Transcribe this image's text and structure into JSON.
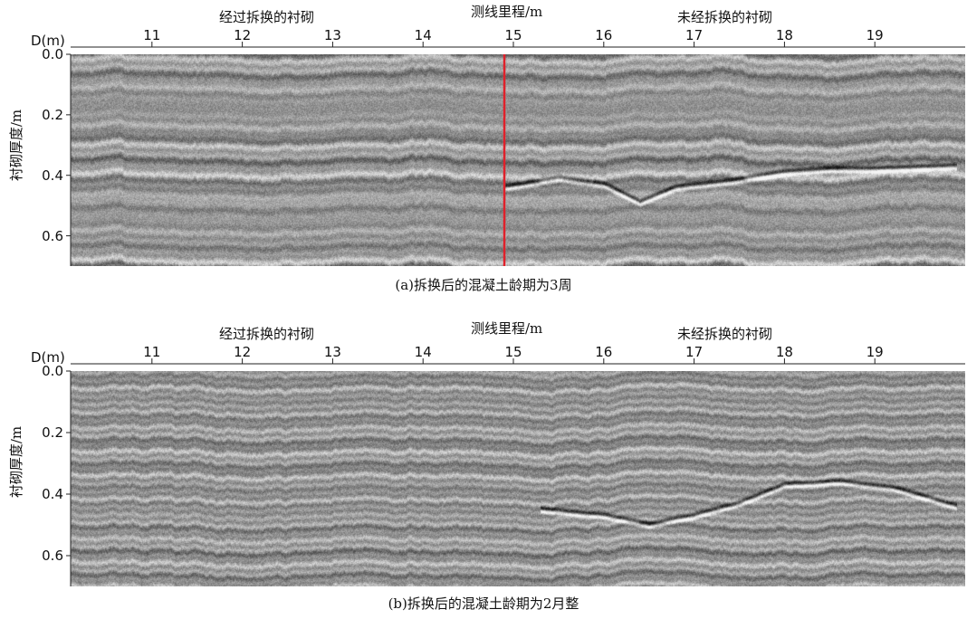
{
  "chart_data": [
    {
      "type": "heatmap",
      "caption": "(a)拆换后的混凝土龄期为3周",
      "top_title": "测线里程/m",
      "left_section_label": "经过拆换的衬砌",
      "right_section_label": "未经拆换的衬砌",
      "distance_label": "D(m)",
      "ylabel": "衬砌厚度/m",
      "x_ticks": [
        11,
        12,
        13,
        14,
        15,
        16,
        17,
        18,
        19
      ],
      "y_ticks": [
        "0.0",
        "0.2",
        "0.4",
        "0.6"
      ],
      "xlim": [
        10.1,
        20.0
      ],
      "ylim": [
        0.0,
        0.7
      ],
      "boundary_marker": {
        "x": 14.9,
        "color": "#e0202a"
      },
      "interface_depth_right": [
        {
          "x": 14.9,
          "y": 0.44
        },
        {
          "x": 15.5,
          "y": 0.41
        },
        {
          "x": 16.0,
          "y": 0.43
        },
        {
          "x": 16.4,
          "y": 0.49
        },
        {
          "x": 16.8,
          "y": 0.44
        },
        {
          "x": 17.4,
          "y": 0.42
        },
        {
          "x": 18.0,
          "y": 0.39
        },
        {
          "x": 18.5,
          "y": 0.38
        },
        {
          "x": 19.0,
          "y": 0.38
        },
        {
          "x": 19.9,
          "y": 0.37
        }
      ],
      "seed": 7
    },
    {
      "type": "heatmap",
      "caption": "(b)拆换后的混凝土龄期为2月整",
      "top_title": "测线里程/m",
      "left_section_label": "经过拆换的衬砌",
      "right_section_label": "未经拆换的衬砌",
      "distance_label": "D(m)",
      "ylabel": "衬砌厚度/m",
      "x_ticks": [
        11,
        12,
        13,
        14,
        15,
        16,
        17,
        18,
        19
      ],
      "y_ticks": [
        "0.0",
        "0.2",
        "0.4",
        "0.6"
      ],
      "xlim": [
        10.1,
        20.0
      ],
      "ylim": [
        0.0,
        0.7
      ],
      "interface_depth_right": [
        {
          "x": 15.3,
          "y": 0.45
        },
        {
          "x": 16.0,
          "y": 0.47
        },
        {
          "x": 16.5,
          "y": 0.5
        },
        {
          "x": 17.0,
          "y": 0.47
        },
        {
          "x": 17.5,
          "y": 0.43
        },
        {
          "x": 18.0,
          "y": 0.37
        },
        {
          "x": 18.6,
          "y": 0.36
        },
        {
          "x": 19.2,
          "y": 0.38
        },
        {
          "x": 19.9,
          "y": 0.44
        }
      ],
      "seed": 13
    }
  ]
}
